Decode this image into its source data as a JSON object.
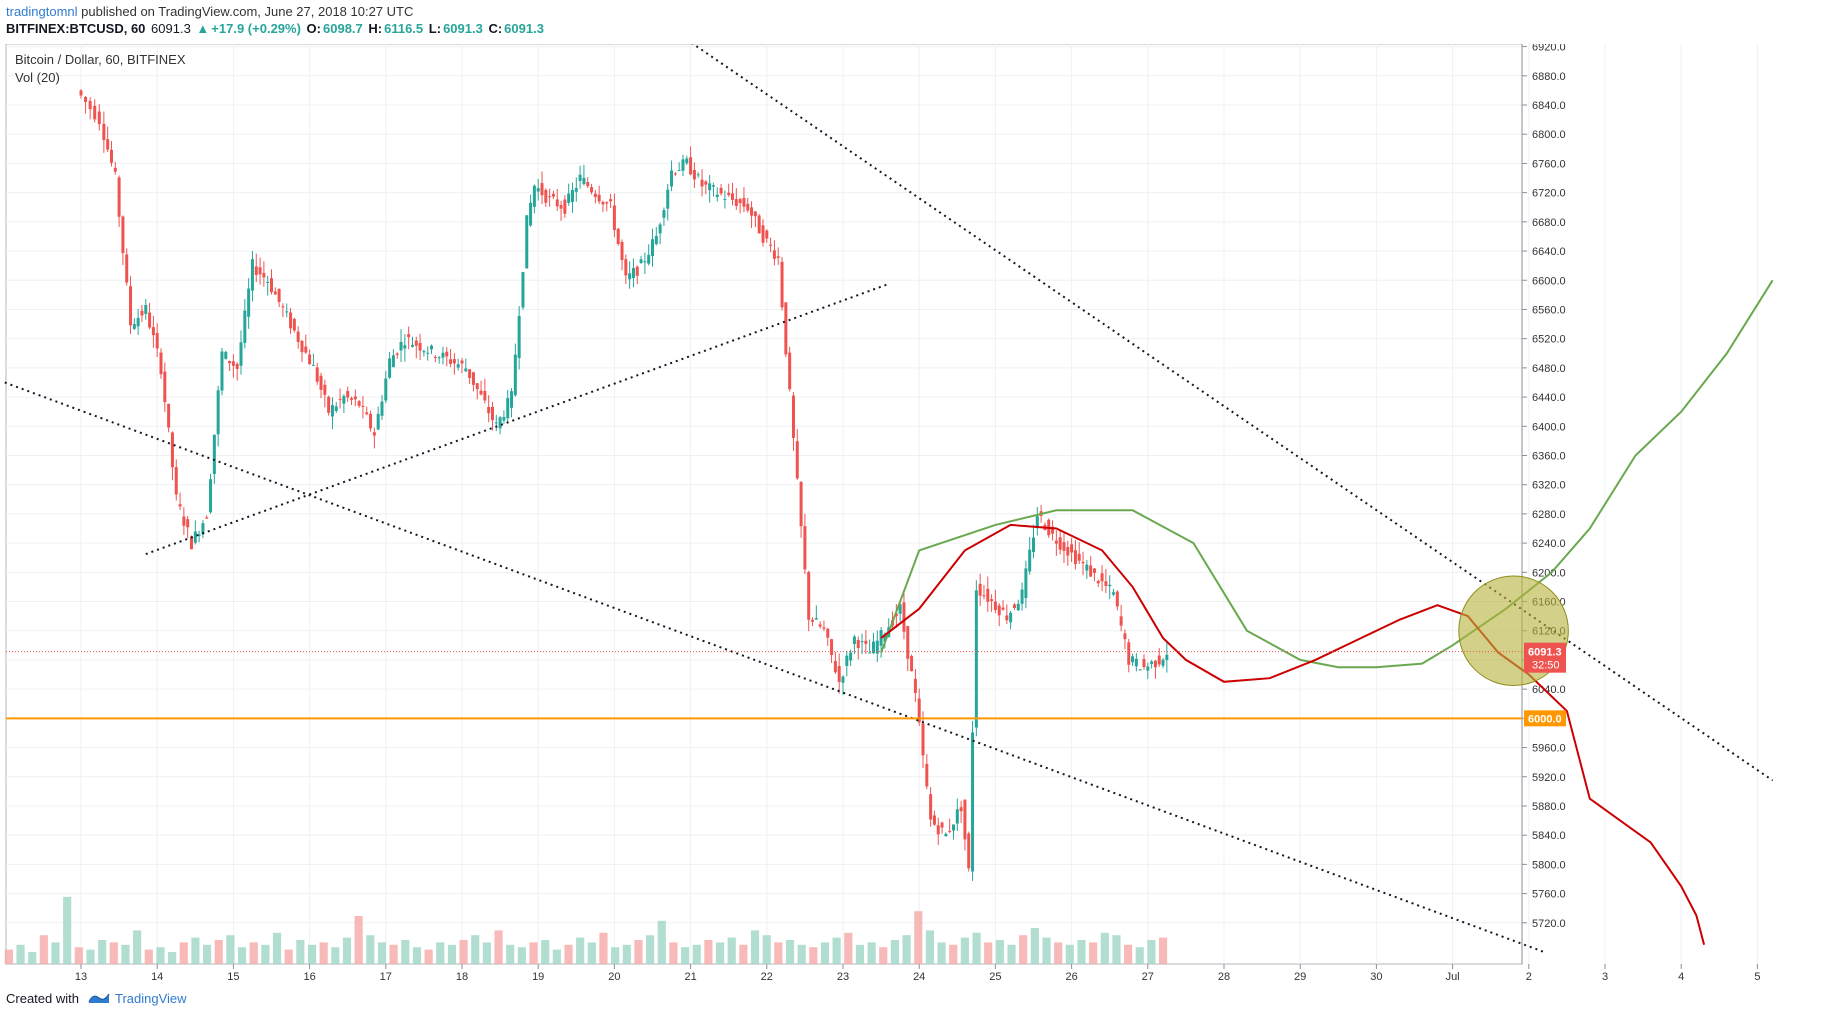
{
  "header": {
    "user": "tradingtomnl",
    "published": "published on TradingView.com, June 27, 2018 10:27 UTC",
    "symbol": "BITFINEX:BTCUSD, 60",
    "last": "6091.3",
    "change": "+17.9 (+0.29%)",
    "o_label": "O:",
    "o_val": "6098.7",
    "h_label": "H:",
    "h_val": "6116.5",
    "l_label": "L:",
    "l_val": "6091.3",
    "c_label": "C:",
    "c_val": "6091.3"
  },
  "legend": {
    "title": "Bitcoin / Dollar, 60, BITFINEX",
    "vol": "Vol (20)"
  },
  "footer": {
    "created": "Created with",
    "brand": "TradingView"
  },
  "colors": {
    "up": "#26a69a",
    "down": "#ef5350",
    "orange": "#ff9800",
    "green_line": "#6aa84f",
    "red_line": "#cc0000",
    "circle_fill": "#b5b33a",
    "price_label": "#ef5350",
    "level_label": "#ff9800"
  },
  "chart_data": {
    "type": "candlestick",
    "title": "Bitcoin / Dollar, 60, BITFINEX",
    "ylim": [
      5680,
      6940
    ],
    "y_ticks": [
      "6920.0",
      "6880.0",
      "6840.0",
      "6800.0",
      "6760.0",
      "6720.0",
      "6680.0",
      "6640.0",
      "6600.0",
      "6560.0",
      "6520.0",
      "6480.0",
      "6440.0",
      "6400.0",
      "6360.0",
      "6320.0",
      "6280.0",
      "6240.0",
      "6200.0",
      "6160.0",
      "6120.0",
      "6080.0",
      "6040.0",
      "6000.0",
      "5960.0",
      "5920.0",
      "5880.0",
      "5840.0",
      "5800.0",
      "5760.0",
      "5720.0"
    ],
    "x_ticks": [
      "13",
      "14",
      "15",
      "16",
      "17",
      "18",
      "19",
      "20",
      "21",
      "22",
      "23",
      "24",
      "25",
      "26",
      "27",
      "28",
      "29",
      "30",
      "Jul",
      "2",
      "3",
      "4",
      "5"
    ],
    "current_price": "6091.3",
    "countdown": "32:50",
    "horizontal_level": {
      "value": 6000,
      "label": "6000.0"
    },
    "price_path": [
      {
        "d": 0,
        "p": 6860
      },
      {
        "d": 0.3,
        "p": 6820
      },
      {
        "d": 0.5,
        "p": 6740
      },
      {
        "d": 0.7,
        "p": 6540
      },
      {
        "d": 0.9,
        "p": 6560
      },
      {
        "d": 1.1,
        "p": 6480
      },
      {
        "d": 1.3,
        "p": 6300
      },
      {
        "d": 1.5,
        "p": 6240
      },
      {
        "d": 1.7,
        "p": 6280
      },
      {
        "d": 1.9,
        "p": 6500
      },
      {
        "d": 2.1,
        "p": 6480
      },
      {
        "d": 2.3,
        "p": 6620
      },
      {
        "d": 2.5,
        "p": 6600
      },
      {
        "d": 2.7,
        "p": 6560
      },
      {
        "d": 2.9,
        "p": 6520
      },
      {
        "d": 3.1,
        "p": 6480
      },
      {
        "d": 3.3,
        "p": 6420
      },
      {
        "d": 3.5,
        "p": 6440
      },
      {
        "d": 3.7,
        "p": 6430
      },
      {
        "d": 3.9,
        "p": 6390
      },
      {
        "d": 4.1,
        "p": 6490
      },
      {
        "d": 4.3,
        "p": 6520
      },
      {
        "d": 4.5,
        "p": 6510
      },
      {
        "d": 4.7,
        "p": 6500
      },
      {
        "d": 4.9,
        "p": 6490
      },
      {
        "d": 5.1,
        "p": 6480
      },
      {
        "d": 5.3,
        "p": 6440
      },
      {
        "d": 5.5,
        "p": 6400
      },
      {
        "d": 5.7,
        "p": 6440
      },
      {
        "d": 5.9,
        "p": 6680
      },
      {
        "d": 6.0,
        "p": 6730
      },
      {
        "d": 6.2,
        "p": 6710
      },
      {
        "d": 6.4,
        "p": 6700
      },
      {
        "d": 6.6,
        "p": 6740
      },
      {
        "d": 6.8,
        "p": 6720
      },
      {
        "d": 7.0,
        "p": 6700
      },
      {
        "d": 7.2,
        "p": 6600
      },
      {
        "d": 7.4,
        "p": 6620
      },
      {
        "d": 7.6,
        "p": 6660
      },
      {
        "d": 7.8,
        "p": 6750
      },
      {
        "d": 8.0,
        "p": 6760
      },
      {
        "d": 8.2,
        "p": 6730
      },
      {
        "d": 8.4,
        "p": 6720
      },
      {
        "d": 8.6,
        "p": 6710
      },
      {
        "d": 8.8,
        "p": 6700
      },
      {
        "d": 9.0,
        "p": 6660
      },
      {
        "d": 9.2,
        "p": 6630
      },
      {
        "d": 9.4,
        "p": 6380
      },
      {
        "d": 9.6,
        "p": 6140
      },
      {
        "d": 9.8,
        "p": 6120
      },
      {
        "d": 10.0,
        "p": 6050
      },
      {
        "d": 10.2,
        "p": 6110
      },
      {
        "d": 10.4,
        "p": 6090
      },
      {
        "d": 10.6,
        "p": 6120
      },
      {
        "d": 10.8,
        "p": 6150
      },
      {
        "d": 11.0,
        "p": 6030
      },
      {
        "d": 11.2,
        "p": 5860
      },
      {
        "d": 11.4,
        "p": 5840
      },
      {
        "d": 11.6,
        "p": 5880
      },
      {
        "d": 11.7,
        "p": 5790
      },
      {
        "d": 11.8,
        "p": 6180
      },
      {
        "d": 12.0,
        "p": 6160
      },
      {
        "d": 12.2,
        "p": 6140
      },
      {
        "d": 12.4,
        "p": 6170
      },
      {
        "d": 12.6,
        "p": 6280
      },
      {
        "d": 12.8,
        "p": 6250
      },
      {
        "d": 13.0,
        "p": 6230
      },
      {
        "d": 13.2,
        "p": 6210
      },
      {
        "d": 13.4,
        "p": 6190
      },
      {
        "d": 13.6,
        "p": 6170
      },
      {
        "d": 13.8,
        "p": 6080
      },
      {
        "d": 14.0,
        "p": 6070
      },
      {
        "d": 14.2,
        "p": 6080
      },
      {
        "d": 14.3,
        "p": 6091
      }
    ],
    "volume_bars": [
      6,
      8,
      5,
      12,
      9,
      28,
      7,
      6,
      10,
      9,
      8,
      14,
      6,
      7,
      5,
      9,
      11,
      8,
      10,
      12,
      7,
      9,
      8,
      13,
      6,
      10,
      8,
      9,
      7,
      11,
      20,
      12,
      9,
      8,
      10,
      7,
      6,
      9,
      8,
      10,
      12,
      9,
      14,
      8,
      7,
      9,
      10,
      6,
      8,
      11,
      9,
      13,
      7,
      8,
      10,
      12,
      18,
      9,
      7,
      8,
      10,
      9,
      11,
      8,
      14,
      12,
      9,
      10,
      8,
      7,
      9,
      11,
      13,
      8,
      9,
      7,
      10,
      12,
      22,
      14,
      9,
      8,
      11,
      13,
      9,
      10,
      8,
      12,
      15,
      11,
      9,
      8,
      10,
      9,
      13,
      12,
      8,
      7,
      10,
      11
    ],
    "annotations": [
      {
        "type": "dotted_line",
        "from": {
          "d": -1,
          "p": 6460
        },
        "to": {
          "d": 19.2,
          "p": 5680
        }
      },
      {
        "type": "dotted_line",
        "from": {
          "d": 7.1,
          "p": 6990
        },
        "to": {
          "d": 22.2,
          "p": 5915
        }
      },
      {
        "type": "dotted_line",
        "from": {
          "d": 0.85,
          "p": 6225
        },
        "to": {
          "d": 10.6,
          "p": 6595
        }
      },
      {
        "type": "projection",
        "color": "green",
        "points": [
          {
            "d": 10.5,
            "p": 6090
          },
          {
            "d": 11.0,
            "p": 6230
          },
          {
            "d": 12.0,
            "p": 6265
          },
          {
            "d": 12.8,
            "p": 6285
          },
          {
            "d": 13.8,
            "p": 6285
          },
          {
            "d": 14.6,
            "p": 6240
          },
          {
            "d": 15.3,
            "p": 6120
          },
          {
            "d": 16.0,
            "p": 6080
          },
          {
            "d": 16.5,
            "p": 6070
          },
          {
            "d": 17.0,
            "p": 6070
          },
          {
            "d": 17.6,
            "p": 6075
          },
          {
            "d": 18.0,
            "p": 6100
          },
          {
            "d": 18.7,
            "p": 6150
          },
          {
            "d": 19.3,
            "p": 6200
          },
          {
            "d": 19.8,
            "p": 6260
          },
          {
            "d": 20.4,
            "p": 6360
          },
          {
            "d": 21.0,
            "p": 6420
          },
          {
            "d": 21.6,
            "p": 6500
          },
          {
            "d": 22.2,
            "p": 6600
          }
        ]
      },
      {
        "type": "projection",
        "color": "red",
        "points": [
          {
            "d": 10.5,
            "p": 6110
          },
          {
            "d": 11.0,
            "p": 6150
          },
          {
            "d": 11.6,
            "p": 6230
          },
          {
            "d": 12.2,
            "p": 6265
          },
          {
            "d": 12.8,
            "p": 6260
          },
          {
            "d": 13.4,
            "p": 6230
          },
          {
            "d": 13.8,
            "p": 6180
          },
          {
            "d": 14.2,
            "p": 6110
          },
          {
            "d": 14.5,
            "p": 6080
          },
          {
            "d": 15.0,
            "p": 6050
          },
          {
            "d": 15.6,
            "p": 6055
          },
          {
            "d": 16.2,
            "p": 6080
          },
          {
            "d": 16.8,
            "p": 6110
          },
          {
            "d": 17.3,
            "p": 6135
          },
          {
            "d": 17.8,
            "p": 6155
          },
          {
            "d": 18.2,
            "p": 6140
          },
          {
            "d": 18.6,
            "p": 6090
          },
          {
            "d": 19.0,
            "p": 6060
          },
          {
            "d": 19.5,
            "p": 6010
          },
          {
            "d": 19.8,
            "p": 5890
          },
          {
            "d": 20.2,
            "p": 5860
          },
          {
            "d": 20.6,
            "p": 5830
          },
          {
            "d": 21.0,
            "p": 5770
          },
          {
            "d": 21.2,
            "p": 5730
          },
          {
            "d": 21.3,
            "p": 5690
          }
        ]
      },
      {
        "type": "circle",
        "center": {
          "d": 18.8,
          "p": 6120
        },
        "radius_price": 75
      }
    ]
  }
}
